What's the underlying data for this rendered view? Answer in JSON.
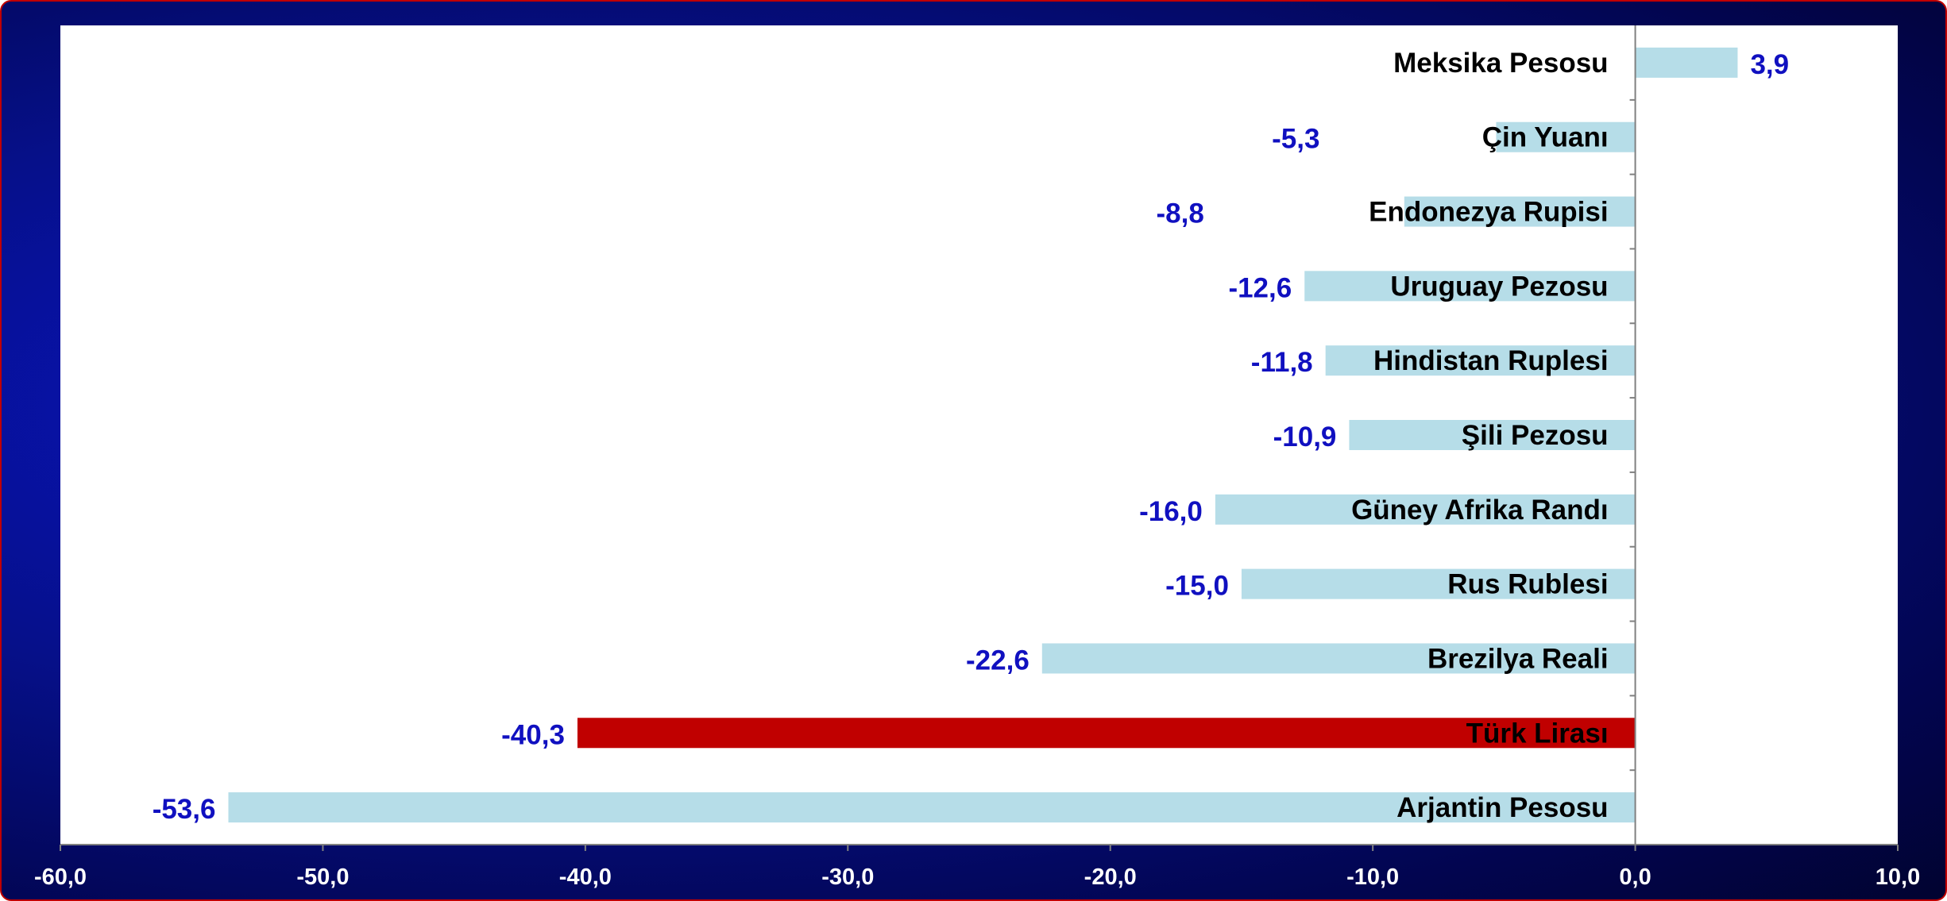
{
  "chart_data": {
    "type": "bar",
    "orientation": "horizontal",
    "categories": [
      "Meksika Pesosu",
      "Çin Yuanı",
      "Endonezya Rupisi",
      "Uruguay Pezosu",
      "Hindistan Ruplesi",
      "Şili Pezosu",
      "Güney Afrika Randı",
      "Rus Rublesi",
      "Brezilya Reali",
      "Türk Lirası",
      "Arjantin Pesosu"
    ],
    "values": [
      3.9,
      -5.3,
      -8.8,
      -12.6,
      -11.8,
      -10.9,
      -16.0,
      -15.0,
      -22.6,
      -40.3,
      -53.6
    ],
    "value_labels": [
      "3,9",
      "-5,3",
      "-8,8",
      "-12,6",
      "-11,8",
      "-10,9",
      "-16,0",
      "-15,0",
      "-22,6",
      "-40,3",
      "-53,6"
    ],
    "highlight_index": 9,
    "xlim": [
      -60,
      10
    ],
    "x_ticks": [
      -60,
      -50,
      -40,
      -30,
      -20,
      -10,
      0,
      10
    ],
    "x_tick_labels": [
      "-60,0",
      "-50,0",
      "-40,0",
      "-30,0",
      "-20,0",
      "-10,0",
      "0,0",
      "10,0"
    ],
    "colors": {
      "bar": "#b6dde8",
      "highlight_bar": "#c00000",
      "value_label": "#1010c0",
      "category_label": "#000000",
      "tick_label": "#ffffff",
      "plot_background": "#ffffff",
      "frame_background": "#06108a"
    },
    "title": "",
    "xlabel": "",
    "ylabel": "",
    "grid": false,
    "legend": "none"
  }
}
